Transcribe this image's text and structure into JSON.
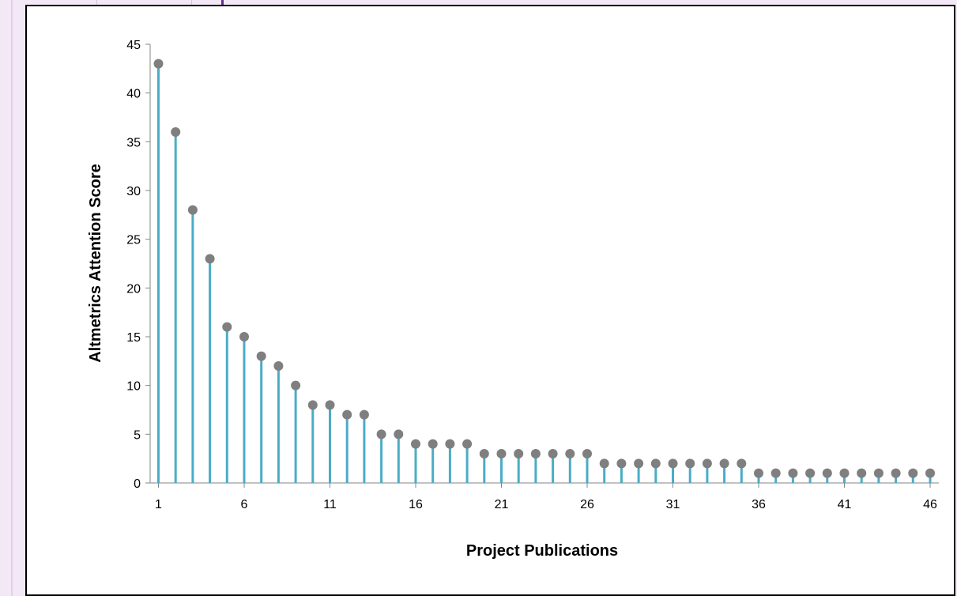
{
  "chart_data": {
    "type": "scatter",
    "subtype": "lollipop",
    "title": "",
    "xlabel": "Project Publications",
    "ylabel": "Altmetrics Attention Score",
    "x": [
      1,
      2,
      3,
      4,
      5,
      6,
      7,
      8,
      9,
      10,
      11,
      12,
      13,
      14,
      15,
      16,
      17,
      18,
      19,
      20,
      21,
      22,
      23,
      24,
      25,
      26,
      27,
      28,
      29,
      30,
      31,
      32,
      33,
      34,
      35,
      36,
      37,
      38,
      39,
      40,
      41,
      42,
      43,
      44,
      45,
      46
    ],
    "values": [
      43,
      36,
      28,
      23,
      16,
      15,
      13,
      12,
      10,
      8,
      8,
      7,
      7,
      5,
      5,
      4,
      4,
      4,
      4,
      3,
      3,
      3,
      3,
      3,
      3,
      3,
      2,
      2,
      2,
      2,
      2,
      2,
      2,
      2,
      2,
      1,
      1,
      1,
      1,
      1,
      1,
      1,
      1,
      1,
      1,
      1
    ],
    "xticks": [
      "1",
      "6",
      "11",
      "16",
      "21",
      "26",
      "31",
      "36",
      "41",
      "46"
    ],
    "yticks": [
      "0",
      "5",
      "10",
      "15",
      "20",
      "25",
      "30",
      "35",
      "40",
      "45"
    ],
    "ylim": [
      0,
      45
    ],
    "xlim": [
      1,
      46
    ],
    "grid": false,
    "legend": "none",
    "colors": {
      "stem": "#4bacc6",
      "marker": "#7f7f7f",
      "axis": "#868686"
    }
  }
}
